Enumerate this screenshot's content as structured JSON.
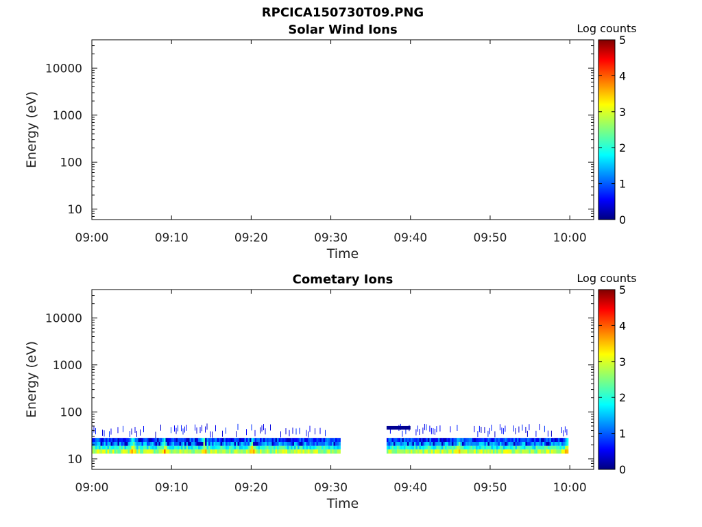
{
  "figure": {
    "title": "RPCICA150730T09.PNG"
  },
  "colors": {
    "colormap": [
      "#00007f",
      "#0000ff",
      "#007fff",
      "#00ffff",
      "#7fff7f",
      "#ffff00",
      "#ff7f00",
      "#ff0000",
      "#7f0000"
    ],
    "axis": "#000000",
    "text": "#222222"
  },
  "chart_data": [
    {
      "type": "heatmap",
      "title": "Solar Wind Ions",
      "xlabel": "Time",
      "ylabel": "Energy (eV)",
      "xlim": [
        "09:00",
        "10:03"
      ],
      "xticks": [
        "09:00",
        "09:10",
        "09:20",
        "09:30",
        "09:40",
        "09:50",
        "10:00"
      ],
      "yscale": "log",
      "ylim": [
        6,
        40000
      ],
      "yticks": [
        10,
        100,
        1000,
        10000
      ],
      "ytick_labels": [
        "10",
        "100",
        "1000",
        "10000"
      ],
      "colorbar": {
        "label": "Log counts",
        "range": [
          0,
          5
        ],
        "ticks": [
          "0",
          "1",
          "2",
          "3",
          "4",
          "5"
        ]
      },
      "bands": []
    },
    {
      "type": "heatmap",
      "title": "Cometary Ions",
      "xlabel": "Time",
      "ylabel": "Energy (eV)",
      "xlim": [
        "09:00",
        "10:03"
      ],
      "xticks": [
        "09:00",
        "09:10",
        "09:20",
        "09:30",
        "09:40",
        "09:50",
        "10:00"
      ],
      "yscale": "log",
      "ylim": [
        6,
        40000
      ],
      "yticks": [
        10,
        100,
        1000,
        10000
      ],
      "ytick_labels": [
        "10",
        "100",
        "1000",
        "10000"
      ],
      "colorbar": {
        "label": "Log counts",
        "range": [
          0,
          5
        ],
        "ticks": [
          "0",
          "1",
          "2",
          "3",
          "4",
          "5"
        ]
      },
      "data_intervals": [
        {
          "start": "09:00",
          "end": "09:31"
        },
        {
          "start": "09:37",
          "end": "09:59:48"
        }
      ],
      "bands": [
        {
          "emin": 13,
          "emax": 16,
          "log_counts": 2.7
        },
        {
          "emin": 16,
          "emax": 19,
          "log_counts": 2.0
        },
        {
          "emin": 19,
          "emax": 23,
          "log_counts": 1.3
        },
        {
          "emin": 23,
          "emax": 28,
          "log_counts": 0.9
        },
        {
          "emin": 28,
          "emax": 50,
          "log_counts": 0.4
        }
      ],
      "saturated_intervals": [
        {
          "start": "09:37",
          "end": "09:40",
          "emin": 42,
          "emax": 50,
          "log_counts": 0.1
        }
      ],
      "enhancements": [
        "09:05",
        "09:09",
        "09:14",
        "09:20",
        "09:46",
        "09:59:40"
      ]
    }
  ]
}
